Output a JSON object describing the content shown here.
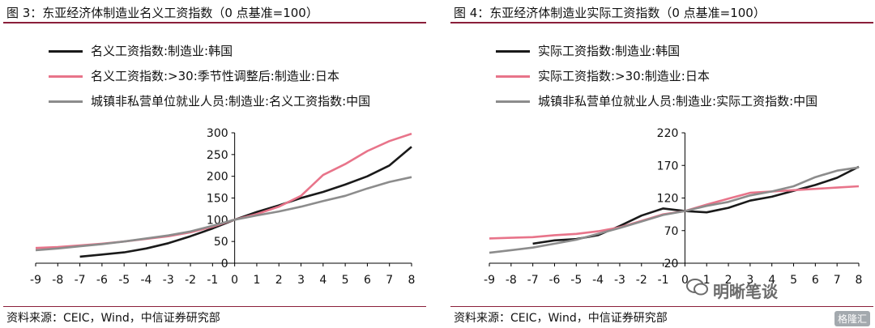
{
  "left": {
    "title": "图 3：东亚经济体制造业名义工资指数（0 点基准=100）",
    "source": "资料来源：CEIC，Wind，中信证券研究部",
    "legend": [
      {
        "label": "名义工资指数:制造业:韩国",
        "color": "#1a1a1a"
      },
      {
        "label": "名义工资指数:>30:季节性调整后:制造业:日本",
        "color": "#e8748a"
      },
      {
        "label": "城镇非私营单位就业人员:制造业:名义工资指数:中国",
        "color": "#8c8c8c"
      }
    ]
  },
  "right": {
    "title": "图 4：东亚经济体制造业实际工资指数（0 点基准=100）",
    "source": "资料来源：CEIC，Wind，中信证券研究部",
    "legend": [
      {
        "label": "实际工资指数:制造业:韩国",
        "color": "#1a1a1a"
      },
      {
        "label": "实际工资指数:>30:制造业:日本",
        "color": "#e8748a"
      },
      {
        "label": "城镇非私营单位就业人员:制造业:实际工资指数:中国",
        "color": "#8c8c8c"
      }
    ]
  },
  "watermark": {
    "text": "明晰笔谈",
    "badge": "格隆汇"
  },
  "chart_data": [
    {
      "type": "line",
      "title": "图 3：东亚经济体制造业名义工资指数（0 点基准=100）",
      "x": [
        -9,
        -8,
        -7,
        -6,
        -5,
        -4,
        -3,
        -2,
        -1,
        0,
        1,
        2,
        3,
        4,
        5,
        6,
        7,
        8
      ],
      "xlim": [
        -9,
        8
      ],
      "ylim": [
        0,
        300
      ],
      "yticks": [
        0,
        50,
        100,
        150,
        200,
        250,
        300
      ],
      "series": [
        {
          "name": "名义工资指数:制造业:韩国",
          "color": "#1a1a1a",
          "values": [
            null,
            null,
            15,
            20,
            25,
            34,
            46,
            62,
            80,
            100,
            118,
            133,
            150,
            164,
            181,
            200,
            225,
            268
          ]
        },
        {
          "name": "名义工资指数:>30:季节性调整后:制造业:日本",
          "color": "#e8748a",
          "values": [
            35,
            37,
            41,
            45,
            50,
            56,
            62,
            71,
            84,
            100,
            113,
            130,
            155,
            203,
            228,
            258,
            281,
            298
          ]
        },
        {
          "name": "城镇非私营单位就业人员:制造业:名义工资指数:中国",
          "color": "#8c8c8c",
          "values": [
            30,
            34,
            39,
            44,
            50,
            57,
            64,
            73,
            86,
            100,
            110,
            119,
            130,
            143,
            155,
            172,
            187,
            198
          ]
        }
      ]
    },
    {
      "type": "line",
      "title": "图 4：东亚经济体制造业实际工资指数（0 点基准=100）",
      "x": [
        -9,
        -8,
        -7,
        -6,
        -5,
        -4,
        -3,
        -2,
        -1,
        0,
        1,
        2,
        3,
        4,
        5,
        6,
        7,
        8
      ],
      "xlim": [
        -9,
        8
      ],
      "ylim": [
        20,
        220
      ],
      "yticks": [
        20,
        70,
        120,
        170,
        220
      ],
      "series": [
        {
          "name": "实际工资指数:制造业:韩国",
          "color": "#1a1a1a",
          "values": [
            null,
            null,
            50,
            55,
            57,
            63,
            77,
            93,
            104,
            100,
            98,
            105,
            116,
            122,
            131,
            140,
            151,
            168
          ]
        },
        {
          "name": "实际工资指数:>30:制造业:日本",
          "color": "#e8748a",
          "values": [
            58,
            59,
            60,
            63,
            65,
            69,
            75,
            85,
            95,
            100,
            110,
            119,
            128,
            130,
            132,
            134,
            136,
            138
          ]
        },
        {
          "name": "城镇非私营单位就业人员:制造业:实际工资指数:中国",
          "color": "#8c8c8c",
          "values": [
            36,
            40,
            44,
            50,
            56,
            65,
            74,
            84,
            94,
            100,
            108,
            114,
            124,
            130,
            138,
            152,
            162,
            167
          ]
        }
      ]
    }
  ]
}
